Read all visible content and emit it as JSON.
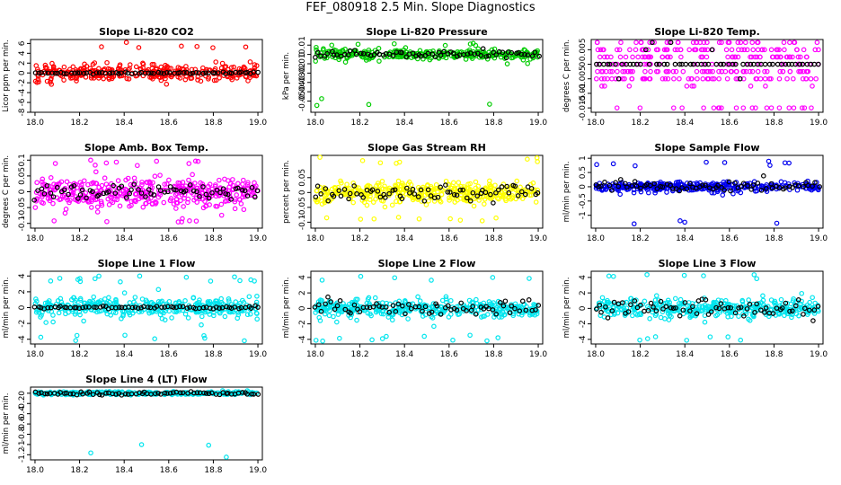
{
  "page_title": "FEF_080918  2.5 Min. Slope Diagnostics",
  "chart_data": [
    {
      "type": "scatter",
      "title": "Slope Li-820 CO2",
      "ylabel": "Licor ppm per min.",
      "xlim": [
        17.98,
        19.02
      ],
      "ylim": [
        -8,
        6.8
      ],
      "yticks": [
        -8,
        -6,
        -4,
        -2,
        0,
        2,
        4,
        6
      ],
      "xticks": [
        18.0,
        18.2,
        18.4,
        18.6,
        18.8,
        19.0
      ],
      "color_main": "#ff0000",
      "color_overlay": "#000000",
      "noise": 1.4,
      "spike_max": 6.3,
      "spike_min": -7.8,
      "overlay_noise": 0.15,
      "n": 340,
      "grid": false
    },
    {
      "type": "scatter",
      "title": "Slope Li-820 Pressure",
      "ylabel": "kPa per min.",
      "xlim": [
        17.98,
        19.02
      ],
      "ylim": [
        -0.062,
        0.016
      ],
      "yticks": [
        -0.05,
        -0.04,
        -0.03,
        -0.02,
        -0.01,
        0.0,
        0.01
      ],
      "xticks": [
        18.0,
        18.2,
        18.4,
        18.6,
        18.8,
        19.0
      ],
      "color_main": "#00cc00",
      "color_overlay": "#000000",
      "noise": 0.005,
      "spike_max": 0.012,
      "spike_min": -0.055,
      "overlay_noise": 0.003,
      "n": 300,
      "grid": false
    },
    {
      "type": "scatter",
      "title": "Slope Li-820 Temp.",
      "ylabel": "degrees C per min.",
      "xlim": [
        17.98,
        19.02
      ],
      "ylim": [
        -0.0165,
        0.0085
      ],
      "yticks": [
        -0.015,
        -0.01,
        -0.005,
        0.0,
        0.005
      ],
      "xticks": [
        18.0,
        18.2,
        18.4,
        18.6,
        18.8,
        19.0
      ],
      "color_main": "#ff00ff",
      "color_overlay": "#000000",
      "levels": [
        0.0075,
        0.005,
        0.0025,
        0.0,
        -0.0025,
        -0.005,
        -0.0075,
        -0.015
      ],
      "n": 320,
      "grid": false
    },
    {
      "type": "scatter",
      "title": "Slope Amb. Box Temp.",
      "ylabel": "degrees C per min.",
      "xlim": [
        17.98,
        19.02
      ],
      "ylim": [
        -0.115,
        0.115
      ],
      "yticks": [
        -0.1,
        -0.05,
        0.0,
        0.05,
        0.1
      ],
      "xticks": [
        18.0,
        18.2,
        18.4,
        18.6,
        18.8,
        19.0
      ],
      "color_main": "#ff00ff",
      "color_overlay": "#000000",
      "noise": 0.04,
      "spike_max": 0.1,
      "spike_min": -0.1,
      "overlay_noise": 0.02,
      "n": 420,
      "grid": false
    },
    {
      "type": "scatter",
      "title": "Slope Gas Stream RH",
      "ylabel": "percent per min.",
      "xlim": [
        17.98,
        19.02
      ],
      "ylim": [
        -0.12,
        0.125
      ],
      "yticks": [
        -0.1,
        -0.05,
        0.0,
        0.05
      ],
      "xticks": [
        18.0,
        18.2,
        18.4,
        18.6,
        18.8,
        19.0
      ],
      "color_main": "#ffff00",
      "color_overlay": "#000000",
      "noise": 0.03,
      "spike_max": 0.12,
      "spike_min": -0.1,
      "overlay_noise": 0.025,
      "n": 420,
      "grid": false
    },
    {
      "type": "scatter",
      "title": "Slope Sample Flow",
      "ylabel": "ml/min per min.",
      "xlim": [
        17.98,
        19.02
      ],
      "ylim": [
        -1.45,
        1.1
      ],
      "yticks": [
        -1.0,
        -0.5,
        0.0,
        0.5,
        1.0
      ],
      "xticks": [
        18.0,
        18.2,
        18.4,
        18.6,
        18.8,
        19.0
      ],
      "color_main": "#0000ee",
      "color_overlay": "#000000",
      "noise": 0.15,
      "spike_max": 0.9,
      "spike_min": -1.3,
      "overlay_noise": 0.18,
      "n": 360,
      "grid": false
    },
    {
      "type": "scatter",
      "title": "Slope Line 1 Flow",
      "ylabel": "ml/min per min.",
      "xlim": [
        17.98,
        19.02
      ],
      "ylim": [
        -4.6,
        4.6
      ],
      "yticks": [
        -4,
        -2,
        0,
        2,
        4
      ],
      "xticks": [
        18.0,
        18.2,
        18.4,
        18.6,
        18.8,
        19.0
      ],
      "color_main": "#00e5ee",
      "color_overlay": "#000000",
      "noise": 1.0,
      "spike_max": 4.0,
      "spike_min": -4.3,
      "overlay_noise": 0.15,
      "n": 380,
      "grid": false
    },
    {
      "type": "scatter",
      "title": "Slope Line 2 Flow",
      "ylabel": "ml/min per min.",
      "xlim": [
        17.98,
        19.02
      ],
      "ylim": [
        -4.6,
        4.8
      ],
      "yticks": [
        -4,
        -2,
        0,
        2,
        4
      ],
      "xticks": [
        18.0,
        18.2,
        18.4,
        18.6,
        18.8,
        19.0
      ],
      "color_main": "#00e5ee",
      "color_overlay": "#000000",
      "noise": 1.0,
      "spike_max": 4.5,
      "spike_min": -4.3,
      "overlay_noise": 0.9,
      "n": 380,
      "grid": false
    },
    {
      "type": "scatter",
      "title": "Slope Line 3 Flow",
      "ylabel": "ml/min per min.",
      "xlim": [
        17.98,
        19.02
      ],
      "ylim": [
        -4.6,
        4.8
      ],
      "yticks": [
        -4,
        -2,
        0,
        2,
        4
      ],
      "xticks": [
        18.0,
        18.2,
        18.4,
        18.6,
        18.8,
        19.0
      ],
      "color_main": "#00e5ee",
      "color_overlay": "#000000",
      "noise": 1.0,
      "spike_max": 4.5,
      "spike_min": -4.3,
      "overlay_noise": 0.9,
      "n": 380,
      "grid": false
    },
    {
      "type": "scatter",
      "title": "Slope Line 4 (LT) Flow",
      "ylabel": "ml/min per min.",
      "xlim": [
        17.98,
        19.02
      ],
      "ylim": [
        -1.3,
        0.12
      ],
      "yticks": [
        -1.2,
        -1.0,
        -0.8,
        -0.6,
        -0.4,
        -0.2,
        0.0
      ],
      "xticks": [
        18.0,
        18.2,
        18.4,
        18.6,
        18.8,
        19.0
      ],
      "color_main": "#00e5ee",
      "color_overlay": "#000000",
      "noise": 0.025,
      "spike_max": 0.06,
      "spike_min": -1.25,
      "overlay_noise": 0.03,
      "n": 300,
      "grid": false
    }
  ]
}
